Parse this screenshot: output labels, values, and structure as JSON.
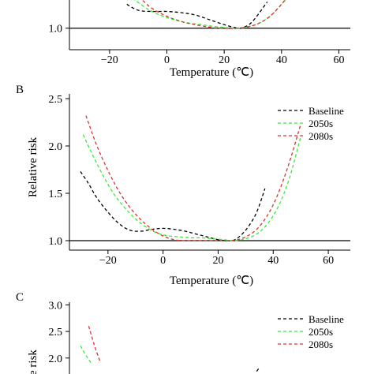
{
  "panels": {
    "A": {
      "label": "",
      "xlabel": "Temperature (℃)"
    },
    "B": {
      "label": "B",
      "xlabel": "Temperature (℃)",
      "ylabel": "Relative risk"
    },
    "C": {
      "label": "C",
      "ylabel": "e risk"
    }
  },
  "legend": [
    "Baseline",
    "2050s",
    "2080s"
  ],
  "colors": {
    "Baseline": "#000000",
    "2050s": "#33ee33",
    "2080s": "#e03030"
  },
  "chart_data": [
    {
      "id": "A",
      "type": "line",
      "xlabel": "Temperature (℃)",
      "xlim": [
        -34,
        64
      ],
      "ylim": [
        0.82,
        1.5
      ],
      "xticks": [
        -20,
        0,
        20,
        40,
        60
      ],
      "yticks": [
        1.0
      ],
      "reference_line": 1.0,
      "series": [
        {
          "name": "Baseline",
          "x": [
            -14,
            -10,
            -5,
            0,
            5,
            10,
            15,
            20,
            25,
            28,
            30,
            32,
            35
          ],
          "y": [
            1.2,
            1.15,
            1.14,
            1.14,
            1.13,
            1.11,
            1.07,
            1.03,
            1.0,
            1.02,
            1.06,
            1.12,
            1.22
          ]
        },
        {
          "name": "2050s",
          "x": [
            -12,
            -6,
            0,
            6,
            12,
            18,
            24,
            28,
            32,
            36,
            40,
            43
          ],
          "y": [
            1.25,
            1.15,
            1.09,
            1.05,
            1.03,
            1.01,
            1.0,
            1.01,
            1.04,
            1.1,
            1.2,
            1.28
          ]
        },
        {
          "name": "2080s",
          "x": [
            -11,
            -6,
            0,
            6,
            12,
            18,
            24,
            28,
            32,
            36,
            40,
            43
          ],
          "y": [
            1.3,
            1.18,
            1.1,
            1.05,
            1.02,
            1.0,
            1.0,
            1.01,
            1.04,
            1.1,
            1.2,
            1.3
          ]
        }
      ]
    },
    {
      "id": "B",
      "type": "line",
      "xlabel": "Temperature (℃)",
      "ylabel": "Relative risk",
      "xlim": [
        -34,
        68
      ],
      "ylim": [
        0.9,
        2.55
      ],
      "xticks": [
        -20,
        0,
        20,
        40,
        60
      ],
      "yticks": [
        1.0,
        1.5,
        2.0,
        2.5
      ],
      "reference_line": 1.0,
      "legend": "top-right",
      "series": [
        {
          "name": "Baseline",
          "x": [
            -30,
            -27,
            -24,
            -20,
            -16,
            -12,
            -8,
            -4,
            0,
            4,
            8,
            12,
            16,
            20,
            25,
            28,
            31,
            34,
            37
          ],
          "y": [
            1.73,
            1.6,
            1.45,
            1.3,
            1.18,
            1.11,
            1.1,
            1.12,
            1.13,
            1.12,
            1.1,
            1.07,
            1.04,
            1.01,
            1.0,
            1.05,
            1.15,
            1.3,
            1.55
          ]
        },
        {
          "name": "2050s",
          "x": [
            -29,
            -26,
            -22,
            -18,
            -14,
            -10,
            -6,
            -2,
            2,
            6,
            10,
            14,
            18,
            22,
            26,
            30,
            34,
            38,
            42,
            46,
            50
          ],
          "y": [
            2.12,
            1.93,
            1.7,
            1.5,
            1.35,
            1.23,
            1.14,
            1.08,
            1.05,
            1.04,
            1.03,
            1.03,
            1.02,
            1.01,
            1.0,
            1.02,
            1.07,
            1.18,
            1.37,
            1.67,
            2.1
          ]
        },
        {
          "name": "2080s",
          "x": [
            -28,
            -24,
            -20,
            -16,
            -12,
            -8,
            -4,
            0,
            4,
            8,
            12,
            16,
            20,
            25,
            30,
            35,
            40,
            45,
            50
          ],
          "y": [
            2.32,
            2.0,
            1.74,
            1.52,
            1.35,
            1.22,
            1.12,
            1.05,
            1.01,
            1.0,
            1.0,
            1.0,
            1.0,
            1.0,
            1.04,
            1.15,
            1.38,
            1.75,
            2.23
          ]
        }
      ]
    },
    {
      "id": "C",
      "type": "line",
      "ylabel": "e risk",
      "xlim": [
        -34,
        68
      ],
      "ylim": [
        1.7,
        3.05
      ],
      "yticks": [
        2.0,
        2.5,
        3.0
      ],
      "legend": "top-right",
      "series": [
        {
          "name": "Baseline",
          "x": [
            34,
            35
          ],
          "y": [
            1.75,
            1.82
          ]
        },
        {
          "name": "2050s",
          "x": [
            -30,
            -28,
            -26
          ],
          "y": [
            2.23,
            2.05,
            1.9
          ]
        },
        {
          "name": "2080s",
          "x": [
            -27,
            -25,
            -23
          ],
          "y": [
            2.6,
            2.25,
            1.95
          ]
        }
      ]
    }
  ]
}
